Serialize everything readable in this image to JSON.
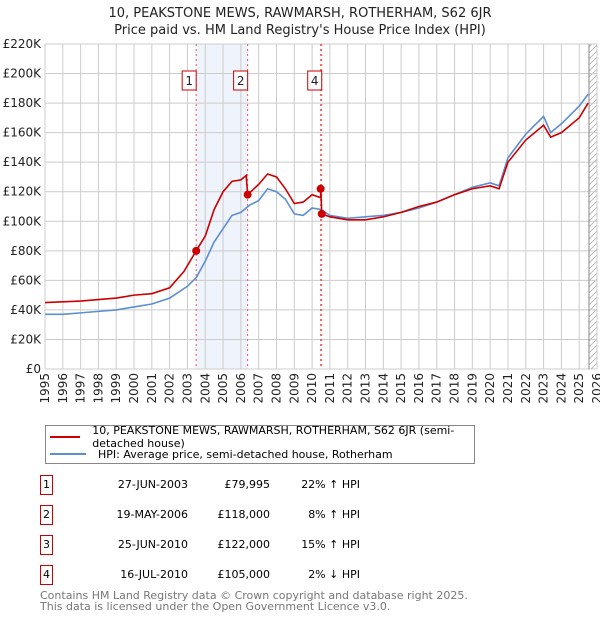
{
  "title": "10, PEAKSTONE MEWS, RAWMARSH, ROTHERHAM, S62 6JR",
  "subtitle": "Price paid vs. HM Land Registry's House Price Index (HPI)",
  "chart_data": {
    "type": "line",
    "ylim": [
      0,
      220000
    ],
    "xlim": [
      1995,
      2026
    ],
    "yticks": [
      0,
      20000,
      40000,
      60000,
      80000,
      100000,
      120000,
      140000,
      160000,
      180000,
      200000,
      220000
    ],
    "ytick_labels": [
      "£0",
      "£20K",
      "£40K",
      "£60K",
      "£80K",
      "£100K",
      "£120K",
      "£140K",
      "£160K",
      "£180K",
      "£200K",
      "£220K"
    ],
    "xticks": [
      "1995",
      "1996",
      "1997",
      "1998",
      "1999",
      "2000",
      "2001",
      "2002",
      "2003",
      "2004",
      "2005",
      "2006",
      "2007",
      "2008",
      "2009",
      "2010",
      "2011",
      "2012",
      "2013",
      "2014",
      "2015",
      "2016",
      "2017",
      "2018",
      "2019",
      "2020",
      "2021",
      "2022",
      "2023",
      "2024",
      "2025",
      "2026"
    ],
    "grid": true,
    "shaded_range": [
      2003.49,
      2006.38
    ],
    "hatched_from": 2025.55,
    "series": [
      {
        "name": "10, PEAKSTONE MEWS, RAWMARSH, ROTHERHAM, S62 6JR (semi-detached house)",
        "color": "#cc0000",
        "x": [
          1995,
          1996,
          1997,
          1998,
          1999,
          2000,
          2001,
          2002,
          2002.8,
          2003.49,
          2004,
          2004.5,
          2005,
          2005.5,
          2006,
          2006.3,
          2006.38,
          2007,
          2007.5,
          2008,
          2008.5,
          2009,
          2009.5,
          2010,
          2010.48,
          2010.49,
          2010.54,
          2011,
          2012,
          2013,
          2014,
          2015,
          2016,
          2017,
          2018,
          2019,
          2020,
          2020.5,
          2021,
          2022,
          2023,
          2023.4,
          2024,
          2025,
          2025.5
        ],
        "y": [
          45000,
          45500,
          46000,
          47000,
          48000,
          50000,
          51000,
          55000,
          66000,
          79995,
          90000,
          108000,
          120000,
          127000,
          128000,
          131000,
          118000,
          125000,
          132000,
          130000,
          122000,
          112000,
          113000,
          118000,
          116000,
          122000,
          105000,
          103000,
          101000,
          101000,
          103000,
          106000,
          110000,
          113000,
          118000,
          122000,
          124000,
          122000,
          140000,
          155000,
          165000,
          157000,
          160000,
          170000,
          180000
        ]
      },
      {
        "name": "HPI: Average price, semi-detached house, Rotherham",
        "color": "#5b8fd0",
        "x": [
          1995,
          1996,
          1997,
          1998,
          1999,
          2000,
          2001,
          2002,
          2003,
          2003.5,
          2004,
          2004.5,
          2005,
          2005.5,
          2006,
          2006.5,
          2007,
          2007.5,
          2008,
          2008.5,
          2009,
          2009.5,
          2010,
          2010.5,
          2011,
          2012,
          2013,
          2014,
          2015,
          2016,
          2017,
          2018,
          2019,
          2020,
          2020.5,
          2021,
          2022,
          2023,
          2023.4,
          2024,
          2025,
          2025.5
        ],
        "y": [
          37000,
          37000,
          38000,
          39000,
          40000,
          42000,
          44000,
          48000,
          56000,
          62000,
          73000,
          86000,
          95000,
          104000,
          106000,
          111000,
          114000,
          122000,
          120000,
          115000,
          105000,
          104000,
          109000,
          108000,
          104000,
          102000,
          103000,
          104000,
          106000,
          109000,
          113000,
          118000,
          123000,
          126000,
          124000,
          143000,
          159000,
          171000,
          160000,
          166000,
          178000,
          186000
        ]
      }
    ],
    "sales": [
      {
        "label": "1",
        "x": 2003.49,
        "y": 79995,
        "date": "27-JUN-2003",
        "price": "£79,995",
        "hpi": "22% ↑ HPI",
        "show_box": true
      },
      {
        "label": "2",
        "x": 2006.38,
        "y": 118000,
        "date": "19-MAY-2006",
        "price": "£118,000",
        "hpi": "8% ↑ HPI",
        "show_box": true
      },
      {
        "label": "3",
        "x": 2010.48,
        "y": 122000,
        "date": "25-JUN-2010",
        "price": "£122,000",
        "hpi": "15% ↑ HPI",
        "show_box": false
      },
      {
        "label": "4",
        "x": 2010.54,
        "y": 105000,
        "date": "16-JUL-2010",
        "price": "£105,000",
        "hpi": "2% ↓ HPI",
        "show_box": true
      }
    ]
  },
  "legend": {
    "red": "10, PEAKSTONE MEWS, RAWMARSH, ROTHERHAM, S62 6JR (semi-detached house)",
    "blue": "HPI: Average price, semi-detached house, Rotherham"
  },
  "footer": {
    "line1": "Contains HM Land Registry data © Crown copyright and database right 2025.",
    "line2": "This data is licensed under the Open Government Licence v3.0."
  }
}
